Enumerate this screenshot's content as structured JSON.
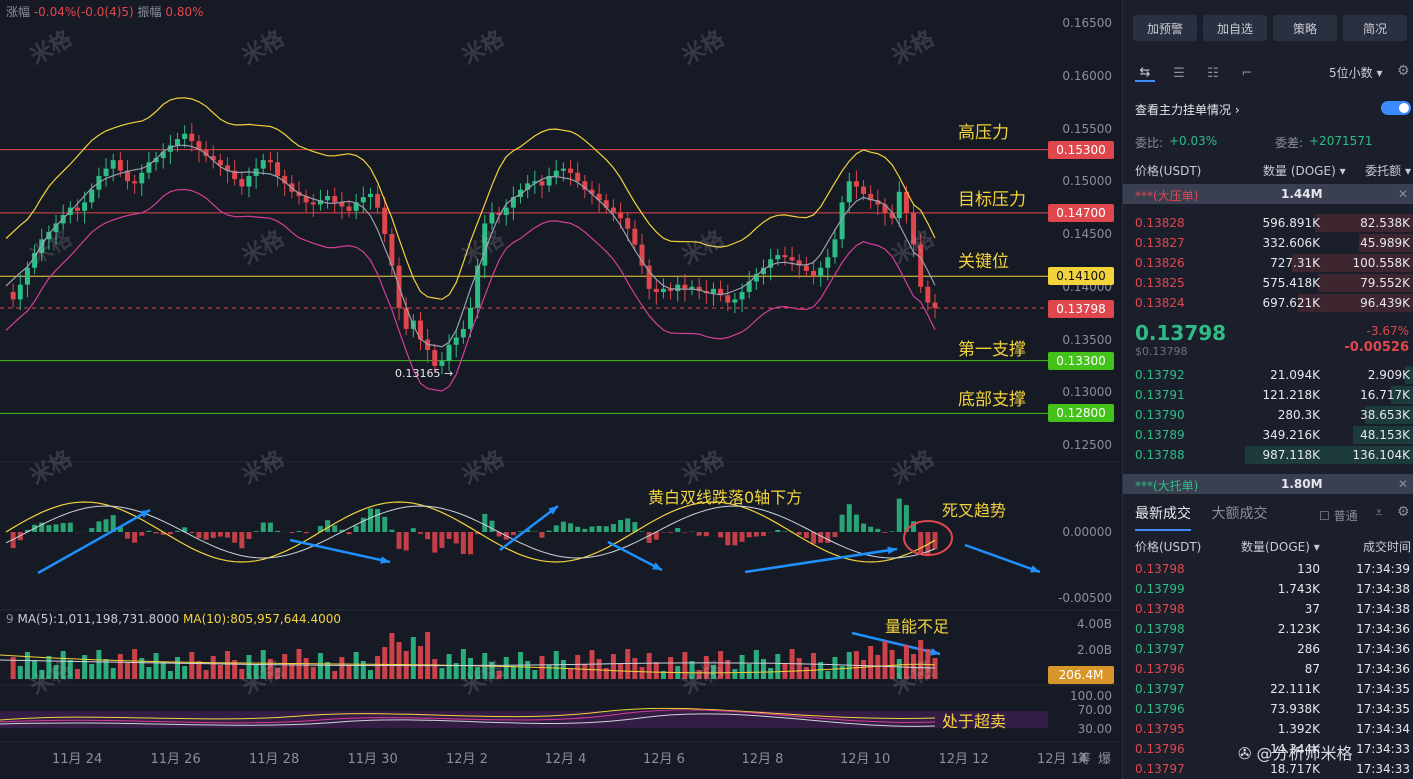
{
  "topbar": {
    "change_label": "涨幅",
    "change_value": "-0.04%(-0.0(4)5)",
    "amp_label": "振幅",
    "amp_value": "0.80%"
  },
  "y_axis_ticks": [
    "0.16500",
    "0.16000",
    "0.15500",
    "0.15000",
    "0.14500",
    "0.14000",
    "0.13500",
    "0.13000",
    "0.12500"
  ],
  "levels": [
    {
      "label": "高压力",
      "price": "0.15300",
      "color": "#e0474d"
    },
    {
      "label": "目标压力",
      "price": "0.14700",
      "color": "#e0474d"
    },
    {
      "label": "关键位",
      "price": "0.14100",
      "color": "#f2d33c"
    },
    {
      "label": "第一支撑",
      "price": "0.13300",
      "color": "#43c21a"
    },
    {
      "label": "底部支撑",
      "price": "0.12800",
      "color": "#43c21a"
    }
  ],
  "current_price_tag": "0.13798",
  "low_marker": "0.13165 →",
  "macd": {
    "annotation": "黄白双线跌落0轴下方",
    "cross_annotation": "死叉趋势",
    "ticks": [
      "0.00000",
      "-0.00500"
    ]
  },
  "volume": {
    "ma5": "MA(5):1,011,198,731.8000",
    "ma10": "MA(10):805,957,644.4000",
    "prefix": "9",
    "annotation": "量能不足",
    "ticks": [
      "4.00B",
      "2.00B"
    ],
    "current_tag": "206.4M"
  },
  "rsi": {
    "annotation": "处于超卖",
    "ticks": [
      "100.00",
      "70.00",
      "30.00"
    ]
  },
  "x_axis_dates": [
    "11月 24",
    "11月 26",
    "11月 28",
    "11月 30",
    "12月 2",
    "12月 4",
    "12月 6",
    "12月 8",
    "12月 10",
    "12月 12",
    "12月 14"
  ],
  "x_axis_extra": [
    "筹",
    "爆"
  ],
  "watermark_text": "米格",
  "panel": {
    "buttons": [
      "加预警",
      "加自选",
      "策略",
      "简况"
    ],
    "decimals": "5位小数 ▾",
    "depth_label": "查看主力挂单情况",
    "ratio_label": "委比:",
    "ratio_value": "+0.03%",
    "diff_label": "委差:",
    "diff_value": "+2071571",
    "headers": [
      "价格(USDT)",
      "数量 (DOGE)",
      "委托额"
    ],
    "sell_banner": {
      "label": "***(大压单)",
      "value": "1.44M"
    },
    "asks": [
      {
        "price": "0.13828",
        "qty": "596.891K",
        "amt": "82.538K",
        "w": 0.34
      },
      {
        "price": "0.13827",
        "qty": "332.606K",
        "amt": "45.989K",
        "w": 0.19
      },
      {
        "price": "0.13826",
        "qty": "727.31K",
        "amt": "100.558K",
        "w": 0.42
      },
      {
        "price": "0.13825",
        "qty": "575.418K",
        "amt": "79.552K",
        "w": 0.33
      },
      {
        "price": "0.13824",
        "qty": "697.621K",
        "amt": "96.439K",
        "w": 0.4
      }
    ],
    "last_price": "0.13798",
    "last_price_usd": "$0.13798",
    "change_pct": "-3.67%",
    "change_abs": "-0.00526",
    "bids": [
      {
        "price": "0.13792",
        "qty": "21.094K",
        "amt": "2.909K",
        "w": 0.03
      },
      {
        "price": "0.13791",
        "qty": "121.218K",
        "amt": "16.717K",
        "w": 0.08
      },
      {
        "price": "0.13790",
        "qty": "280.3K",
        "amt": "38.653K",
        "w": 0.17
      },
      {
        "price": "0.13789",
        "qty": "349.216K",
        "amt": "48.153K",
        "w": 0.21
      },
      {
        "price": "0.13788",
        "qty": "987.118K",
        "amt": "136.104K",
        "w": 0.58
      }
    ],
    "buy_banner": {
      "label": "***(大托单)",
      "value": "1.80M"
    },
    "trade_tabs": [
      "最新成交",
      "大额成交"
    ],
    "common_label": "普通",
    "trade_headers": [
      "价格(USDT)",
      "数量(DOGE)",
      "成交时间"
    ],
    "trades": [
      {
        "price": "0.13798",
        "qty": "130",
        "time": "17:34:39",
        "side": "sell"
      },
      {
        "price": "0.13799",
        "qty": "1.743K",
        "time": "17:34:38",
        "side": "buy"
      },
      {
        "price": "0.13798",
        "qty": "37",
        "time": "17:34:38",
        "side": "sell"
      },
      {
        "price": "0.13798",
        "qty": "2.123K",
        "time": "17:34:36",
        "side": "buy"
      },
      {
        "price": "0.13797",
        "qty": "286",
        "time": "17:34:36",
        "side": "buy"
      },
      {
        "price": "0.13796",
        "qty": "87",
        "time": "17:34:36",
        "side": "sell"
      },
      {
        "price": "0.13797",
        "qty": "22.111K",
        "time": "17:34:35",
        "side": "buy"
      },
      {
        "price": "0.13796",
        "qty": "73.938K",
        "time": "17:34:35",
        "side": "buy"
      },
      {
        "price": "0.13795",
        "qty": "1.392K",
        "time": "17:34:34",
        "side": "sell"
      },
      {
        "price": "0.13796",
        "qty": "14.344K",
        "time": "17:34:33",
        "side": "sell"
      },
      {
        "price": "0.13797",
        "qty": "18.717K",
        "time": "17:34:33",
        "side": "sell"
      }
    ],
    "footer": "@分析师米格"
  },
  "colors": {
    "up": "#2ebd85",
    "down": "#e0474d",
    "yellow": "#f2d33c",
    "pink": "#d63d9a",
    "grey_ma": "#9aa0ad",
    "arrow": "#1e90ff"
  }
}
